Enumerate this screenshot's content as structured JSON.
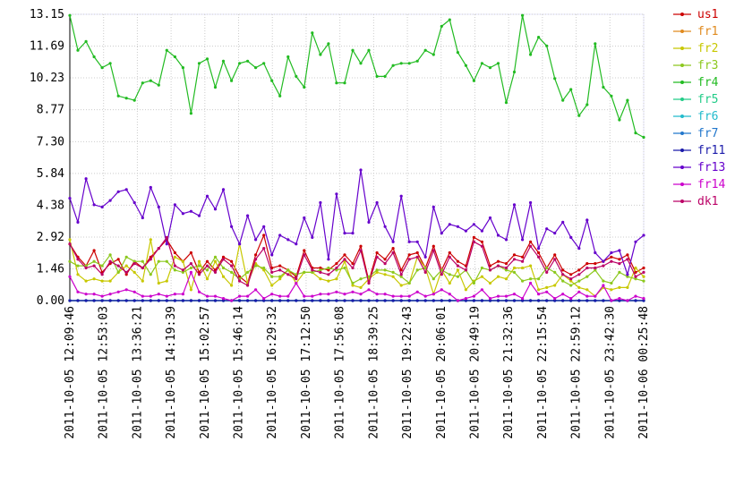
{
  "chart_data": {
    "type": "line",
    "title": "",
    "xlabel": "",
    "ylabel": "",
    "ylim": [
      0,
      13.15
    ],
    "y_ticks": [
      "0.00",
      "1.46",
      "2.92",
      "4.38",
      "5.84",
      "7.30",
      "8.77",
      "10.23",
      "11.69",
      "13.15"
    ],
    "x_tick_labels": [
      "2011-10-05 12:09:46",
      "2011-10-05 12:53:03",
      "2011-10-05 13:36:21",
      "2011-10-05 14:19:39",
      "2011-10-05 15:02:57",
      "2011-10-05 15:46:14",
      "2011-10-05 16:29:32",
      "2011-10-05 17:12:50",
      "2011-10-05 17:56:08",
      "2011-10-05 18:39:25",
      "2011-10-05 19:22:43",
      "2011-10-05 20:06:01",
      "2011-10-05 20:49:19",
      "2011-10-05 21:32:36",
      "2011-10-05 22:15:54",
      "2011-10-05 22:59:12",
      "2011-10-05 23:42:30",
      "2011-10-06 00:25:48"
    ],
    "grid": true,
    "legend_position": "right",
    "series": [
      {
        "name": "us1",
        "color": "#cc0000",
        "values": [
          2.6,
          2.0,
          1.6,
          2.3,
          1.3,
          1.7,
          1.9,
          1.2,
          1.8,
          1.5,
          2.0,
          2.4,
          2.8,
          2.2,
          1.8,
          2.2,
          1.3,
          1.8,
          1.4,
          2.0,
          1.8,
          1.1,
          0.8,
          2.1,
          3.0,
          1.5,
          1.6,
          1.4,
          1.1,
          2.3,
          1.5,
          1.5,
          1.4,
          1.7,
          2.1,
          1.7,
          2.5,
          0.9,
          2.2,
          1.9,
          2.4,
          1.4,
          2.1,
          2.2,
          1.5,
          2.5,
          1.4,
          2.2,
          1.8,
          1.6,
          2.9,
          2.7,
          1.6,
          1.8,
          1.7,
          2.1,
          2.0,
          2.7,
          2.2,
          1.5,
          2.1,
          1.4,
          1.2,
          1.4,
          1.7,
          1.7,
          1.8,
          2.0,
          1.9,
          2.1,
          1.3,
          1.5
        ]
      },
      {
        "name": "fr1",
        "color": "#e08a1e",
        "values": [
          0,
          0,
          0,
          0,
          0,
          0,
          0,
          0,
          0,
          0,
          0,
          0,
          0,
          0,
          0,
          0,
          0,
          0,
          0,
          0,
          0,
          0,
          0,
          0,
          0,
          0,
          0,
          0,
          0,
          0,
          0,
          0,
          0,
          0,
          0,
          0,
          0,
          0,
          0,
          0,
          0,
          0,
          0,
          0,
          0,
          0,
          0,
          0,
          0,
          0,
          0,
          0,
          0,
          0,
          0,
          0,
          0,
          0,
          0,
          0,
          0,
          0,
          0,
          0,
          0,
          0,
          0,
          0,
          0,
          0,
          0,
          0
        ]
      },
      {
        "name": "fr2",
        "color": "#c8c800",
        "values": [
          2.8,
          1.2,
          0.9,
          1.0,
          0.9,
          0.9,
          1.3,
          1.6,
          1.3,
          0.9,
          2.8,
          0.8,
          0.9,
          2.0,
          1.8,
          0.5,
          1.8,
          1.0,
          1.8,
          1.1,
          0.7,
          2.6,
          0.8,
          1.7,
          1.4,
          0.7,
          1.0,
          1.4,
          0.8,
          1.3,
          1.3,
          1.0,
          0.9,
          1.0,
          1.8,
          0.7,
          0.6,
          1.0,
          1.3,
          1.2,
          1.1,
          0.7,
          0.8,
          2.0,
          1.5,
          0.3,
          1.4,
          0.8,
          1.4,
          0.5,
          0.9,
          1.1,
          0.8,
          1.1,
          1.0,
          1.5,
          1.5,
          1.6,
          0.5,
          0.6,
          0.7,
          1.2,
          0.9,
          0.6,
          0.5,
          0.2,
          0.6,
          0.5,
          0.6,
          0.6,
          1.5,
          1.1
        ]
      },
      {
        "name": "fr3",
        "color": "#8cc81e",
        "values": [
          1.8,
          1.6,
          1.6,
          1.8,
          1.6,
          2.1,
          1.3,
          2.0,
          1.8,
          1.8,
          1.2,
          1.8,
          1.8,
          1.4,
          1.3,
          1.5,
          1.6,
          1.4,
          2.0,
          1.5,
          1.3,
          1.0,
          1.3,
          1.6,
          1.5,
          1.1,
          1.1,
          1.4,
          1.2,
          1.3,
          1.3,
          1.4,
          1.5,
          1.4,
          1.5,
          0.8,
          1.0,
          1.1,
          1.4,
          1.4,
          1.3,
          1.1,
          0.8,
          1.4,
          1.5,
          1.0,
          1.4,
          1.2,
          1.1,
          1.4,
          0.8,
          1.5,
          1.4,
          1.6,
          1.4,
          1.3,
          0.9,
          1.0,
          1.0,
          1.5,
          1.3,
          0.9,
          0.7,
          0.9,
          1.1,
          1.4,
          0.9,
          0.8,
          1.3,
          1.1,
          1.0,
          0.9
        ]
      },
      {
        "name": "fr4",
        "color": "#22bb22",
        "values": [
          13.1,
          11.5,
          11.9,
          11.2,
          10.7,
          10.9,
          9.4,
          9.3,
          9.2,
          10.0,
          10.1,
          9.9,
          11.5,
          11.2,
          10.7,
          8.6,
          10.9,
          11.1,
          9.8,
          11.0,
          10.1,
          10.9,
          11.0,
          10.7,
          10.9,
          10.1,
          9.4,
          11.2,
          10.3,
          9.8,
          12.3,
          11.3,
          11.8,
          10.0,
          10.0,
          11.5,
          10.9,
          11.5,
          10.3,
          10.3,
          10.8,
          10.9,
          10.9,
          11.0,
          11.5,
          11.3,
          12.6,
          12.9,
          11.4,
          10.8,
          10.1,
          10.9,
          10.7,
          10.9,
          9.1,
          10.5,
          13.1,
          11.3,
          12.1,
          11.7,
          10.2,
          9.2,
          9.7,
          8.5,
          9.0,
          11.8,
          9.8,
          9.4,
          8.3,
          9.2,
          7.7,
          7.5
        ]
      },
      {
        "name": "fr5",
        "color": "#22cc88",
        "values": [
          0,
          0,
          0,
          0,
          0,
          0,
          0,
          0,
          0,
          0,
          0,
          0,
          0,
          0,
          0,
          0,
          0,
          0,
          0,
          0,
          0,
          0,
          0,
          0,
          0,
          0,
          0,
          0,
          0,
          0,
          0,
          0,
          0,
          0,
          0,
          0,
          0,
          0,
          0,
          0,
          0,
          0,
          0,
          0,
          0,
          0,
          0,
          0,
          0,
          0,
          0,
          0,
          0,
          0,
          0,
          0,
          0,
          0,
          0,
          0,
          0,
          0,
          0,
          0,
          0,
          0,
          0,
          0,
          0,
          0,
          0,
          0
        ]
      },
      {
        "name": "fr6",
        "color": "#22bbcc",
        "values": [
          0,
          0,
          0,
          0,
          0,
          0,
          0,
          0,
          0,
          0,
          0,
          0,
          0,
          0,
          0,
          0,
          0,
          0,
          0,
          0,
          0,
          0,
          0,
          0,
          0,
          0,
          0,
          0,
          0,
          0,
          0,
          0,
          0,
          0,
          0,
          0,
          0,
          0,
          0,
          0,
          0,
          0,
          0,
          0,
          0,
          0,
          0,
          0,
          0,
          0,
          0,
          0,
          0,
          0,
          0,
          0,
          0,
          0,
          0,
          0,
          0,
          0,
          0,
          0,
          0,
          0,
          0,
          0,
          0,
          0,
          0,
          0
        ]
      },
      {
        "name": "fr7",
        "color": "#2277cc",
        "values": [
          0,
          0,
          0,
          0,
          0,
          0,
          0,
          0,
          0,
          0,
          0,
          0,
          0,
          0,
          0,
          0,
          0,
          0,
          0,
          0,
          0,
          0,
          0,
          0,
          0,
          0,
          0,
          0,
          0,
          0,
          0,
          0,
          0,
          0,
          0,
          0,
          0,
          0,
          0,
          0,
          0,
          0,
          0,
          0,
          0,
          0,
          0,
          0,
          0,
          0,
          0,
          0,
          0,
          0,
          0,
          0,
          0,
          0,
          0,
          0,
          0,
          0,
          0,
          0,
          0,
          0,
          0,
          0,
          0,
          0,
          0,
          0
        ]
      },
      {
        "name": "fr11",
        "color": "#1a1aaa",
        "values": [
          0,
          0,
          0,
          0,
          0,
          0,
          0,
          0,
          0,
          0,
          0,
          0,
          0,
          0,
          0,
          0,
          0,
          0,
          0,
          0,
          0,
          0,
          0,
          0,
          0,
          0,
          0,
          0,
          0,
          0,
          0,
          0,
          0,
          0,
          0,
          0,
          0,
          0,
          0,
          0,
          0,
          0,
          0,
          0,
          0,
          0,
          0,
          0,
          0,
          0,
          0,
          0,
          0,
          0,
          0,
          0,
          0,
          0,
          0,
          0,
          0,
          0,
          0,
          0,
          0,
          0,
          0,
          0,
          0,
          0,
          0,
          0
        ]
      },
      {
        "name": "fr13",
        "color": "#6600cc",
        "values": [
          4.7,
          3.6,
          5.6,
          4.4,
          4.3,
          4.6,
          5.0,
          5.1,
          4.5,
          3.8,
          5.2,
          4.3,
          2.6,
          4.4,
          4.0,
          4.1,
          3.9,
          4.8,
          4.2,
          5.1,
          3.4,
          2.6,
          3.9,
          2.8,
          3.4,
          2.1,
          3.0,
          2.8,
          2.6,
          3.8,
          2.9,
          4.5,
          1.9,
          4.9,
          3.1,
          3.1,
          6.0,
          3.6,
          4.5,
          3.4,
          2.7,
          4.8,
          2.7,
          2.7,
          2.0,
          4.3,
          3.1,
          3.5,
          3.4,
          3.2,
          3.5,
          3.2,
          3.8,
          3.0,
          2.8,
          4.4,
          2.8,
          4.5,
          2.4,
          3.3,
          3.1,
          3.6,
          2.9,
          2.4,
          3.7,
          2.2,
          1.8,
          2.2,
          2.3,
          1.2,
          2.7,
          3.0
        ]
      },
      {
        "name": "fr14",
        "color": "#cc00cc",
        "values": [
          1.1,
          0.4,
          0.3,
          0.3,
          0.2,
          0.3,
          0.4,
          0.5,
          0.4,
          0.2,
          0.2,
          0.3,
          0.2,
          0.3,
          0.3,
          1.3,
          0.4,
          0.2,
          0.2,
          0.1,
          0.0,
          0.2,
          0.2,
          0.5,
          0.1,
          0.3,
          0.2,
          0.2,
          0.8,
          0.2,
          0.2,
          0.3,
          0.3,
          0.4,
          0.3,
          0.4,
          0.3,
          0.5,
          0.3,
          0.3,
          0.2,
          0.2,
          0.2,
          0.4,
          0.2,
          0.3,
          0.5,
          0.3,
          0.0,
          0.1,
          0.2,
          0.5,
          0.1,
          0.2,
          0.2,
          0.3,
          0.1,
          0.8,
          0.3,
          0.4,
          0.1,
          0.3,
          0.1,
          0.4,
          0.2,
          0.2,
          0.7,
          0.0,
          0.1,
          0.0,
          0.2,
          0.1
        ]
      },
      {
        "name": "dk1",
        "color": "#bb0066",
        "values": [
          2.6,
          1.9,
          1.5,
          1.6,
          1.2,
          1.8,
          1.6,
          1.3,
          1.7,
          1.5,
          1.9,
          2.4,
          2.9,
          1.6,
          1.4,
          1.7,
          1.2,
          1.6,
          1.3,
          1.9,
          1.6,
          0.9,
          0.7,
          1.9,
          2.4,
          1.3,
          1.4,
          1.2,
          1.0,
          2.1,
          1.4,
          1.3,
          1.2,
          1.5,
          1.9,
          1.5,
          2.3,
          0.8,
          2.0,
          1.7,
          2.2,
          1.2,
          1.9,
          2.0,
          1.3,
          2.3,
          1.2,
          2.0,
          1.6,
          1.4,
          2.7,
          2.5,
          1.4,
          1.6,
          1.5,
          1.9,
          1.8,
          2.5,
          2.0,
          1.3,
          1.9,
          1.2,
          1.0,
          1.2,
          1.5,
          1.5,
          1.6,
          1.8,
          1.7,
          1.9,
          1.1,
          1.3
        ]
      }
    ]
  }
}
